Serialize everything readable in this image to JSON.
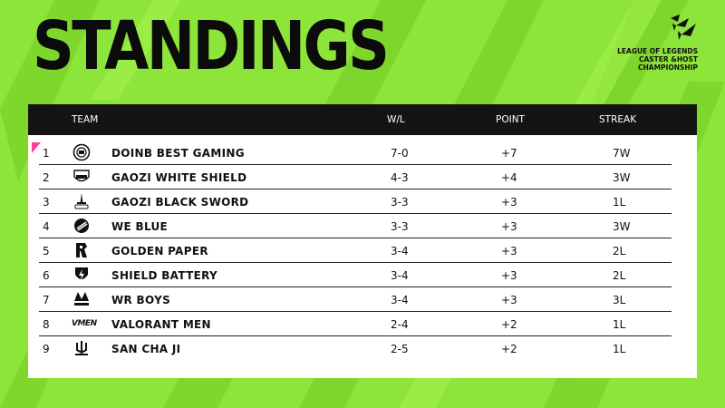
{
  "header": {
    "title": "STANDINGS",
    "brand_lines": [
      "LEAGUE OF LEGENDS",
      "CASTER &HOST",
      "CHAMPIONSHIP"
    ]
  },
  "table": {
    "columns": {
      "team": "TEAM",
      "wl": "W/L",
      "point": "POINT",
      "streak": "STREAK"
    },
    "rows": [
      {
        "rank": "1",
        "team": "DOINB BEST GAMING",
        "wl": "7-0",
        "point": "+7",
        "streak": "7W",
        "logo": "doinb-logo-icon"
      },
      {
        "rank": "2",
        "team": "GAOZI WHITE SHIELD",
        "wl": "4-3",
        "point": "+4",
        "streak": "3W",
        "logo": "white-shield-logo-icon"
      },
      {
        "rank": "3",
        "team": "GAOZI BLACK SWORD",
        "wl": "3-3",
        "point": "+3",
        "streak": "1L",
        "logo": "black-sword-logo-icon"
      },
      {
        "rank": "4",
        "team": "WE BLUE",
        "wl": "3-3",
        "point": "+3",
        "streak": "3W",
        "logo": "we-blue-logo-icon"
      },
      {
        "rank": "5",
        "team": "GOLDEN PAPER",
        "wl": "3-4",
        "point": "+3",
        "streak": "2L",
        "logo": "golden-paper-logo-icon"
      },
      {
        "rank": "6",
        "team": "SHIELD BATTERY",
        "wl": "3-4",
        "point": "+3",
        "streak": "2L",
        "logo": "shield-battery-logo-icon"
      },
      {
        "rank": "7",
        "team": "WR BOYS",
        "wl": "3-4",
        "point": "+3",
        "streak": "3L",
        "logo": "wr-boys-logo-icon"
      },
      {
        "rank": "8",
        "team": "VALORANT MEN",
        "wl": "2-4",
        "point": "+2",
        "streak": "1L",
        "logo": "valorant-men-logo-icon",
        "logo_text": "VMEN"
      },
      {
        "rank": "9",
        "team": "SAN CHA JI",
        "wl": "2-5",
        "point": "+2",
        "streak": "1L",
        "logo": "san-cha-ji-logo-icon"
      }
    ]
  },
  "colors": {
    "background": "#8ee53a",
    "stripe": "#7dd52b",
    "header": "#141414",
    "accent": "#ff3ea5"
  }
}
